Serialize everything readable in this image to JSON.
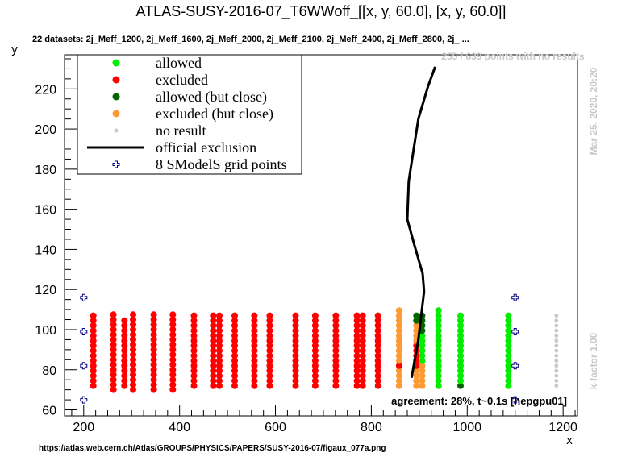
{
  "chart_data": {
    "type": "scatter",
    "title": "ATLAS-SUSY-2016-07_T6WWoff_[[x, y, 60.0], [x, y, 60.0]]",
    "subtitle": "22 datasets: 2j_Meff_1200, 2j_Meff_1600, 2j_Meff_2000, 2j_Meff_2100, 2j_Meff_2400, 2j_Meff_2800, 2j_ ...",
    "xlabel": "x",
    "ylabel": "y",
    "xlim": [
      160,
      1230
    ],
    "ylim": [
      57,
      237
    ],
    "xticks": [
      200,
      400,
      600,
      800,
      1000,
      1200
    ],
    "yticks": [
      60,
      80,
      100,
      120,
      140,
      160,
      180,
      200,
      220
    ],
    "legend_position": "top-left",
    "colors": {
      "allowed": "#00ee00",
      "excluded": "#ff0000",
      "allowed_close": "#006400",
      "excluded_close": "#ff9933",
      "no_result": "#c8c8c8",
      "official": "#000000",
      "grid": "#000080"
    },
    "legend": [
      {
        "key": "allowed",
        "label": "allowed",
        "marker": "dot"
      },
      {
        "key": "excluded",
        "label": "excluded",
        "marker": "dot"
      },
      {
        "key": "allowed_close",
        "label": "allowed (but close)",
        "marker": "dot"
      },
      {
        "key": "excluded_close",
        "label": "excluded (but close)",
        "marker": "dot"
      },
      {
        "key": "no_result",
        "label": "no result",
        "marker": "small"
      },
      {
        "key": "official",
        "label": "official exclusion",
        "marker": "line"
      },
      {
        "key": "grid",
        "label": "8 SModelS grid points",
        "marker": "cross"
      }
    ],
    "columns": [
      {
        "x": 220,
        "y0": 72,
        "y1": 108,
        "cat": "excluded"
      },
      {
        "x": 262,
        "y0": 70,
        "y1": 108,
        "cat": "excluded"
      },
      {
        "x": 285,
        "y0": 72,
        "y1": 106,
        "cat": "excluded"
      },
      {
        "x": 303,
        "y0": 70,
        "y1": 108,
        "cat": "excluded"
      },
      {
        "x": 346,
        "y0": 70,
        "y1": 109,
        "cat": "excluded"
      },
      {
        "x": 386,
        "y0": 70,
        "y1": 109,
        "cat": "excluded"
      },
      {
        "x": 430,
        "y0": 72,
        "y1": 108,
        "cat": "excluded"
      },
      {
        "x": 470,
        "y0": 72,
        "y1": 108,
        "cat": "excluded"
      },
      {
        "x": 483,
        "y0": 72,
        "y1": 109,
        "cat": "excluded"
      },
      {
        "x": 515,
        "y0": 72,
        "y1": 108,
        "cat": "excluded"
      },
      {
        "x": 556,
        "y0": 72,
        "y1": 109,
        "cat": "excluded"
      },
      {
        "x": 588,
        "y0": 72,
        "y1": 108,
        "cat": "excluded"
      },
      {
        "x": 642,
        "y0": 72,
        "y1": 108,
        "cat": "excluded"
      },
      {
        "x": 683,
        "y0": 72,
        "y1": 109,
        "cat": "excluded"
      },
      {
        "x": 726,
        "y0": 72,
        "y1": 108,
        "cat": "excluded"
      },
      {
        "x": 770,
        "y0": 72,
        "y1": 109,
        "cat": "excluded"
      },
      {
        "x": 782,
        "y0": 72,
        "y1": 108,
        "cat": "excluded"
      },
      {
        "x": 814,
        "y0": 72,
        "y1": 109,
        "cat": "excluded"
      },
      {
        "x": 858,
        "y0": 72,
        "y1": 110,
        "cat": "mixed"
      },
      {
        "x": 894,
        "y0": 72,
        "y1": 108,
        "cat": "mixed2"
      },
      {
        "x": 906,
        "y0": 72,
        "y1": 109,
        "cat": "mixed3"
      },
      {
        "x": 940,
        "y0": 72,
        "y1": 110,
        "cat": "allowed"
      },
      {
        "x": 986,
        "y0": 72,
        "y1": 109,
        "cat": "allowed"
      },
      {
        "x": 1086,
        "y0": 72,
        "y1": 109,
        "cat": "allowed"
      },
      {
        "x": 1186,
        "y0": 72,
        "y1": 108,
        "cat": "no_result"
      }
    ],
    "official_exclusion": {
      "x": [
        884,
        898,
        910,
        907,
        890,
        875,
        878,
        898,
        918,
        933
      ],
      "y": [
        76,
        95,
        119,
        128,
        142,
        155,
        174,
        205,
        221,
        231
      ]
    },
    "grid_points": {
      "x": [
        200,
        200,
        200,
        200,
        1100,
        1100,
        1100,
        1100
      ],
      "y": [
        65,
        82,
        99,
        116,
        65,
        82,
        99,
        116
      ]
    },
    "annotations": {
      "no_result_count": "255 / 639 points with no results",
      "date": "Mar 25, 2020, 20:20",
      "kfactor": "k-factor 1.00",
      "agreement": "agreement: 28%, t~0.1s [hepgpu01]",
      "url": "https://atlas.web.cern.ch/Atlas/GROUPS/PHYSICS/PAPERS/SUSY-2016-07/figaux_077a.png"
    }
  }
}
